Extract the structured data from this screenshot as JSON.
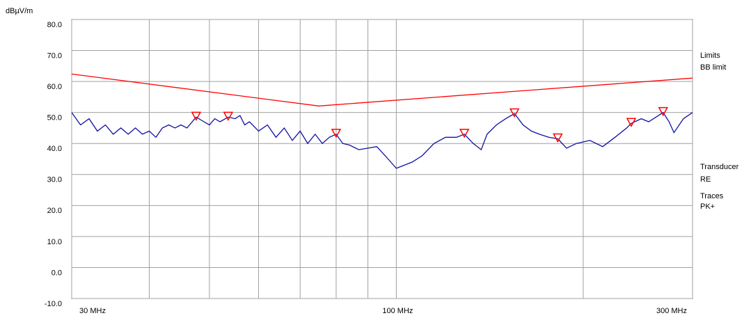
{
  "chart_data": {
    "type": "line",
    "y_label": "dBµV/m",
    "xscale": "log",
    "xlim": [
      30,
      300
    ],
    "xticks": [
      {
        "value": 30,
        "label": "30 MHz"
      },
      {
        "value": 100,
        "label": "100 MHz"
      },
      {
        "value": 300,
        "label": "300 MHz"
      }
    ],
    "xminor": [
      40,
      50,
      60,
      70,
      80,
      90,
      200
    ],
    "ylim": [
      -10,
      80
    ],
    "yticks": [
      {
        "value": 80,
        "label": "80.0"
      },
      {
        "value": 70,
        "label": "70.0"
      },
      {
        "value": 60,
        "label": "60.0"
      },
      {
        "value": 50,
        "label": "50.0"
      },
      {
        "value": 40,
        "label": "40.0"
      },
      {
        "value": 30,
        "label": "30.0"
      },
      {
        "value": 20,
        "label": "20.0"
      },
      {
        "value": 10,
        "label": "10.0"
      },
      {
        "value": 0,
        "label": "0.0"
      },
      {
        "value": -10,
        "label": "-10.0"
      }
    ],
    "grid": true,
    "legend": {
      "limits_title": "Limits",
      "transducer_title": "Transducer",
      "transducer": "RE",
      "traces_title": "Traces"
    },
    "series": [
      {
        "name": "BB limit",
        "color": "#ff0000",
        "x": [
          30,
          75,
          300
        ],
        "values": [
          62.4,
          52.1,
          61.1
        ]
      },
      {
        "name": "PK+",
        "color": "#1010a0",
        "x": [
          30,
          31,
          32,
          33,
          34,
          35,
          36,
          37,
          38,
          39,
          40,
          41,
          42,
          43,
          44,
          45,
          46,
          47.6,
          49,
          50,
          51,
          52,
          53.6,
          55,
          56,
          57,
          58,
          60,
          62,
          64,
          66,
          68,
          70,
          72,
          74,
          76,
          78,
          80,
          82,
          84,
          87,
          90,
          93,
          96,
          100,
          103,
          106,
          110,
          115,
          120,
          125,
          128.7,
          133,
          137,
          140,
          145,
          150,
          155,
          160,
          165,
          170,
          176,
          182,
          188,
          195,
          205,
          215,
          225,
          235,
          239,
          248,
          255,
          262,
          269,
          275,
          280,
          290,
          300
        ],
        "values": [
          50,
          46,
          48,
          44,
          46,
          43,
          45,
          43,
          45,
          43,
          44,
          42,
          45,
          46,
          45,
          46,
          45,
          48.5,
          47,
          46,
          48,
          47,
          48.5,
          48,
          49,
          46,
          47,
          44,
          46,
          42,
          45,
          41,
          44,
          40,
          43,
          40,
          42,
          43,
          40,
          39.5,
          38,
          38.5,
          39,
          36,
          32,
          33,
          34,
          36,
          40,
          42,
          42,
          43,
          40,
          38,
          43,
          46,
          48,
          49.6,
          46,
          44,
          43,
          42,
          41.5,
          38.5,
          40,
          41,
          39,
          42,
          45,
          46.5,
          48,
          47,
          48.5,
          50,
          47,
          43.5,
          48,
          50
        ]
      }
    ],
    "markers": {
      "color": "#ff0000",
      "x": [
        47.6,
        53.6,
        80,
        128.7,
        155,
        182,
        239,
        269
      ],
      "values": [
        48.5,
        48.5,
        43,
        43,
        49.6,
        41.5,
        46.5,
        50
      ]
    }
  }
}
